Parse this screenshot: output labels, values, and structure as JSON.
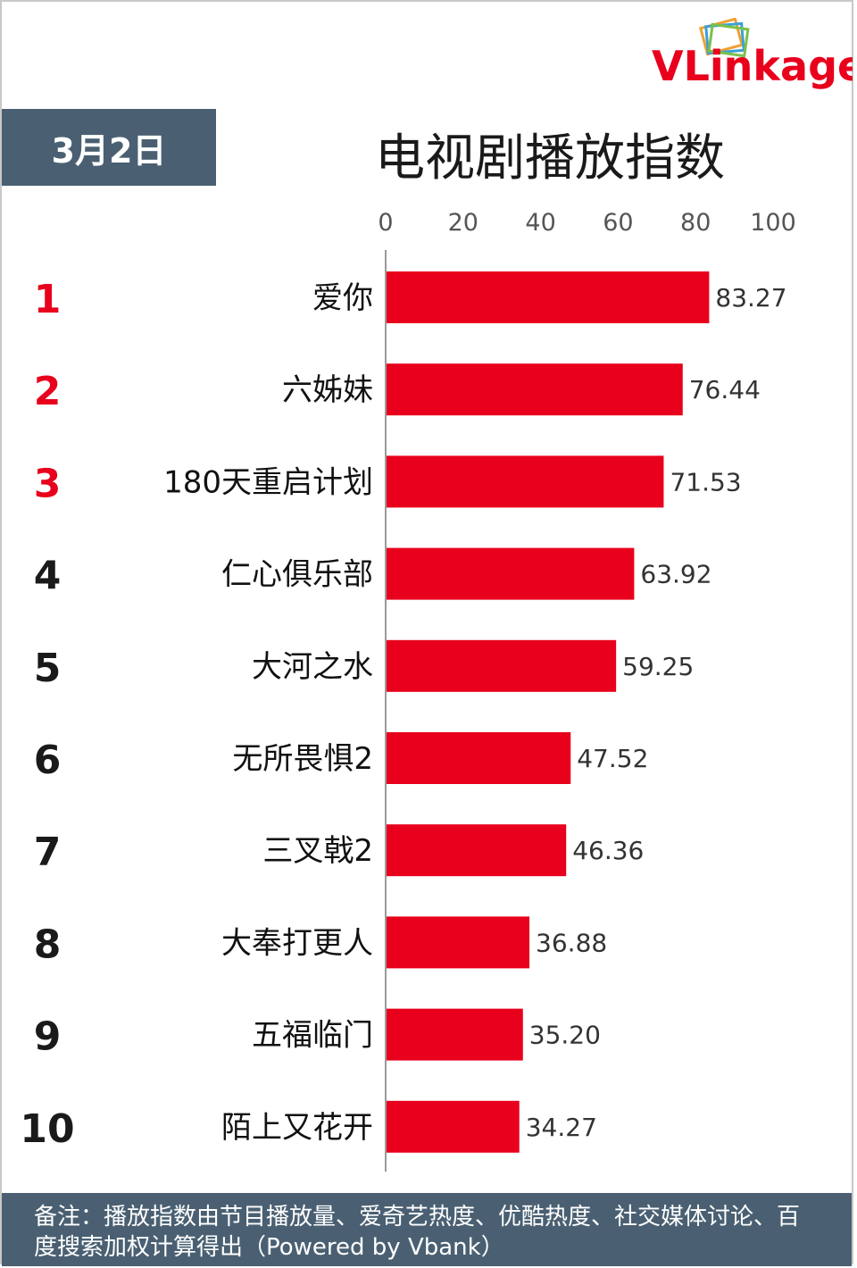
{
  "brand": {
    "logo_text_red": "VLink",
    "logo_text_grey": "age"
  },
  "header": {
    "date": "3月2日",
    "title": "电视剧播放指数"
  },
  "chart_data": {
    "type": "bar",
    "orientation": "horizontal",
    "title": "电视剧播放指数",
    "xlim": [
      0,
      100
    ],
    "x_ticks": [
      "0",
      "20",
      "40",
      "60",
      "80",
      "100"
    ],
    "ranks": [
      "1",
      "2",
      "3",
      "4",
      "5",
      "6",
      "7",
      "8",
      "9",
      "10"
    ],
    "categories": [
      "爱你",
      "六姊妹",
      "180天重启计划",
      "仁心俱乐部",
      "大河之水",
      "无所畏惧2",
      "三叉戟2",
      "大奉打更人",
      "五福临门",
      "陌上又花开"
    ],
    "values": [
      83.27,
      76.44,
      71.53,
      63.92,
      59.25,
      47.52,
      46.36,
      36.88,
      35.2,
      34.27
    ],
    "value_labels": [
      "83.27",
      "76.44",
      "71.53",
      "63.92",
      "59.25",
      "47.52",
      "46.36",
      "36.88",
      "35.20",
      "34.27"
    ],
    "bar_color": "#e8001c",
    "top_rank_color": "#e8001c",
    "rank_color": "#1a1a1a"
  },
  "footer": {
    "note": "备注：播放指数由节目播放量、爱奇艺热度、优酷热度、社交媒体讨论、百度搜索加权计算得出（Powered by Vbank）"
  }
}
